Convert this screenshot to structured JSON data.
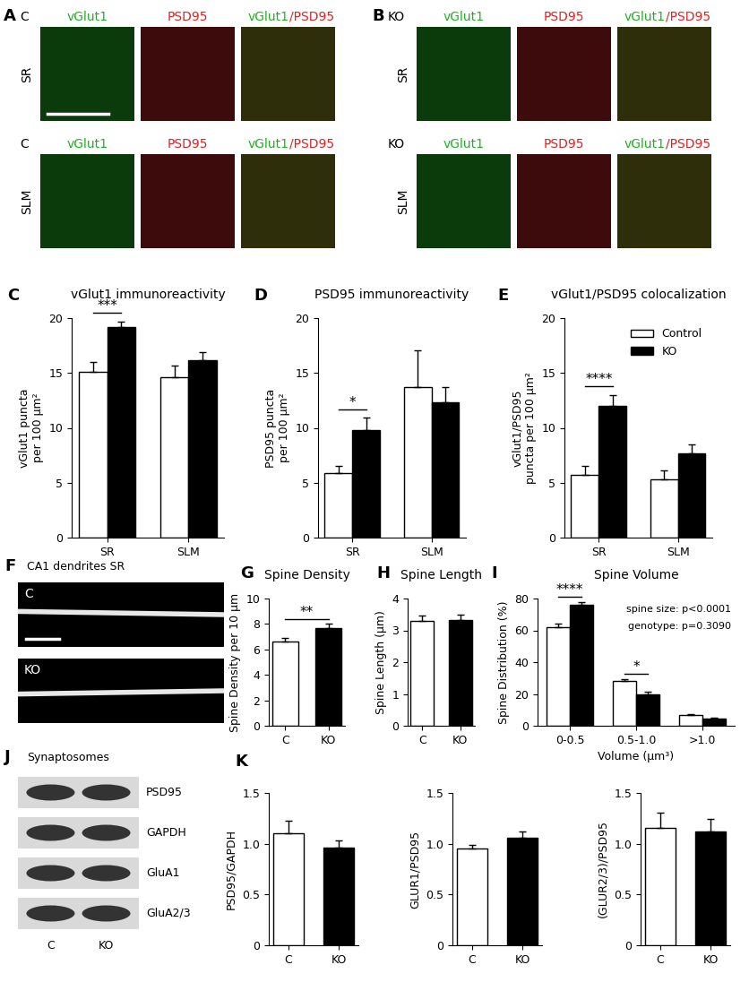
{
  "chart_data": [
    {
      "panel": "C",
      "type": "bar",
      "title": "vGlut1 immunoreactivity",
      "y_label": "vGlut1 puncta\nper 100 µm²",
      "categories": [
        "SR",
        "SLM"
      ],
      "series": [
        {
          "color": "#ffffff",
          "values": [
            15.1,
            14.6
          ],
          "errors": [
            0.9,
            1.1
          ]
        },
        {
          "color": "#000000",
          "values": [
            19.2,
            16.2
          ],
          "errors": [
            0.5,
            0.7
          ]
        }
      ],
      "ylim": [
        0,
        20
      ],
      "yticks": [
        0,
        5,
        10,
        15,
        20
      ],
      "significance": [
        {
          "category": "SR",
          "label": "***"
        }
      ]
    },
    {
      "panel": "D",
      "type": "bar",
      "title": "PSD95 immunoreactivity",
      "y_label": "PSD95 puncta\nper 100 µm²",
      "categories": [
        "SR",
        "SLM"
      ],
      "series": [
        {
          "color": "#ffffff",
          "values": [
            5.9,
            13.7
          ],
          "errors": [
            0.6,
            3.4
          ]
        },
        {
          "color": "#000000",
          "values": [
            9.8,
            12.3
          ],
          "errors": [
            1.1,
            1.4
          ]
        }
      ],
      "ylim": [
        0,
        20
      ],
      "yticks": [
        0,
        5,
        10,
        15,
        20
      ],
      "significance": [
        {
          "category": "SR",
          "label": "*"
        }
      ]
    },
    {
      "panel": "E",
      "type": "bar",
      "title": "vGlut1/PSD95 colocalization",
      "y_label": "vGlut1/PSD95\npuncta per 100 µm²",
      "categories": [
        "SR",
        "SLM"
      ],
      "series": [
        {
          "name": "Control",
          "color": "#ffffff",
          "values": [
            5.7,
            5.3
          ],
          "errors": [
            0.8,
            0.8
          ]
        },
        {
          "name": "KO",
          "color": "#000000",
          "values": [
            12.0,
            7.7
          ],
          "errors": [
            1.0,
            0.8
          ]
        }
      ],
      "ylim": [
        0,
        20
      ],
      "yticks": [
        0,
        5,
        10,
        15,
        20
      ],
      "legend": "upper right",
      "significance": [
        {
          "category": "SR",
          "label": "****"
        }
      ]
    },
    {
      "panel": "G",
      "type": "bar",
      "title": "Spine Density",
      "y_label": "Spine Density per 10 µm",
      "categories": [
        "C",
        "KO"
      ],
      "series": [
        {
          "colors": [
            "#ffffff",
            "#000000"
          ],
          "values": [
            6.65,
            7.7
          ],
          "errors": [
            0.25,
            0.3
          ]
        }
      ],
      "ylim": [
        0,
        10
      ],
      "yticks": [
        0,
        2,
        4,
        6,
        8,
        10
      ],
      "significance": [
        {
          "categories": [
            "C",
            "KO"
          ],
          "label": "**"
        }
      ]
    },
    {
      "panel": "H",
      "type": "bar",
      "title": "Spine Length",
      "y_label": "Spine Length (µm)",
      "categories": [
        "C",
        "KO"
      ],
      "series": [
        {
          "colors": [
            "#ffffff",
            "#000000"
          ],
          "values": [
            3.3,
            3.33
          ],
          "errors": [
            0.17,
            0.17
          ]
        }
      ],
      "ylim": [
        0,
        4
      ],
      "yticks": [
        0,
        1,
        2,
        3,
        4
      ]
    },
    {
      "panel": "I",
      "type": "bar",
      "title": "Spine Volume",
      "y_label": "Spine Distribution (%)",
      "x_label": "Volume (µm³)",
      "categories": [
        "0-0.5",
        "0.5-1.0",
        ">1.0"
      ],
      "series": [
        {
          "color": "#ffffff",
          "values": [
            62,
            28,
            6.5
          ],
          "errors": [
            2.3,
            1.5,
            0.8
          ]
        },
        {
          "color": "#000000",
          "values": [
            76,
            20,
            4.5
          ],
          "errors": [
            1.8,
            1.5,
            0.8
          ]
        }
      ],
      "ylim": [
        0,
        80
      ],
      "yticks": [
        0,
        20,
        40,
        60,
        80
      ],
      "annotations": [
        "spine size: p<0.0001",
        "genotype: p=0.3090"
      ],
      "significance": [
        {
          "category": "0-0.5",
          "label": "****"
        },
        {
          "category": "0.5-1.0",
          "label": "*"
        }
      ]
    },
    {
      "panel": "K",
      "type": "bar",
      "y_label": "PSD95/GAPDH",
      "categories": [
        "C",
        "KO"
      ],
      "series": [
        {
          "colors": [
            "#ffffff",
            "#000000"
          ],
          "values": [
            1.1,
            0.96
          ],
          "errors": [
            0.13,
            0.07
          ]
        }
      ],
      "ylim": [
        0,
        1.5
      ],
      "yticks": [
        0,
        0.5,
        {
          "value": 1,
          "label": "1.0"
        },
        1.5
      ]
    },
    {
      "type": "bar",
      "y_label": "GLUR1/PSD95",
      "categories": [
        "C",
        "KO"
      ],
      "series": [
        {
          "colors": [
            "#ffffff",
            "#000000"
          ],
          "values": [
            0.95,
            1.06
          ],
          "errors": [
            0.04,
            0.06
          ]
        }
      ],
      "ylim": [
        0,
        1.5
      ],
      "yticks": [
        0,
        0.5,
        {
          "value": 1,
          "label": "1.0"
        },
        1.5
      ]
    },
    {
      "type": "bar",
      "y_label": "(GLUR2/3)/PSD95",
      "categories": [
        "C",
        "KO"
      ],
      "series": [
        {
          "colors": [
            "#ffffff",
            "#000000"
          ],
          "values": [
            1.16,
            1.12
          ],
          "errors": [
            0.15,
            0.12
          ]
        }
      ],
      "ylim": [
        0,
        1.5
      ],
      "yticks": [
        0,
        0.5,
        {
          "value": 1,
          "label": "1.0"
        },
        1.5
      ]
    }
  ],
  "images": {
    "A": {
      "letter": "A",
      "condition": "C",
      "channels": [
        "vGlut1",
        "PSD95",
        "vGlut1/PSD95"
      ],
      "rows": [
        "SR",
        "SLM"
      ]
    },
    "B": {
      "letter": "B",
      "condition": "KO",
      "channels": [
        "vGlut1",
        "PSD95",
        "vGlut1/PSD95"
      ],
      "rows": [
        "SR",
        "SLM"
      ]
    },
    "F": {
      "letter": "F",
      "title": "CA1 dendrites SR",
      "rows": [
        "C",
        "KO"
      ]
    },
    "J": {
      "letter": "J",
      "title": "Synaptosomes",
      "bands": [
        "PSD95",
        "GAPDH",
        "GluA1",
        "GluA2/3"
      ],
      "lanes": [
        "C",
        "KO"
      ]
    }
  }
}
